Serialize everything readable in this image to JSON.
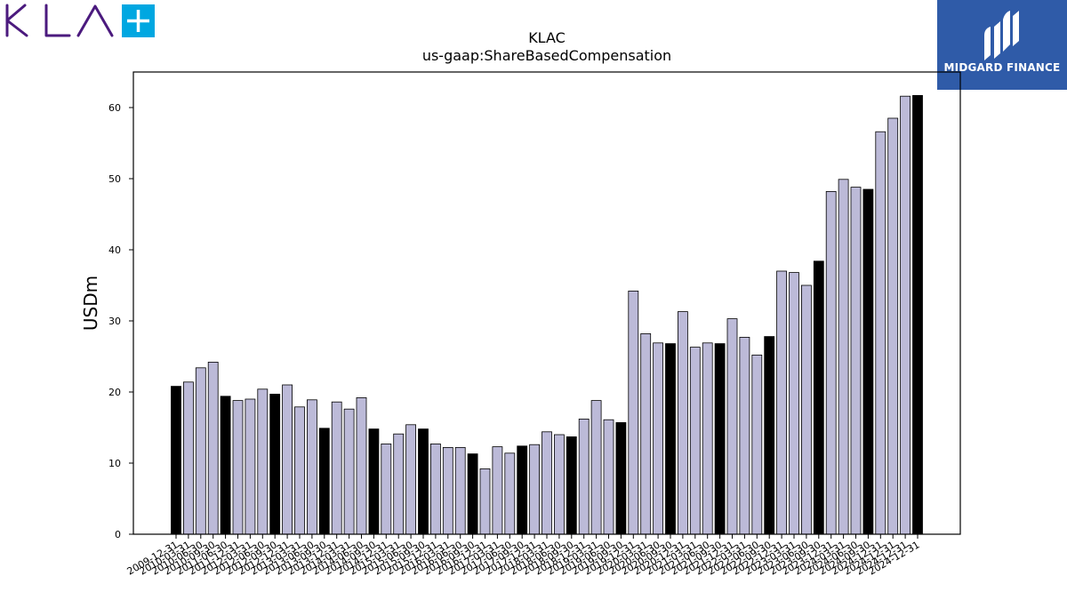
{
  "brand": {
    "left_logo_text": "KLA",
    "right_logo_text": "MIDGARD FINANCE",
    "left_logo_color": "#4b1a7e",
    "plus_box_color": "#00a7e1",
    "right_box_color": "#2f5ba8"
  },
  "chart_data": {
    "type": "bar",
    "title": "KLAC",
    "subtitle": "us-gaap:ShareBasedCompensation",
    "xlabel": "",
    "ylabel": "USDm",
    "ylim": [
      0,
      65
    ],
    "yticks": [
      0,
      10,
      20,
      30,
      40,
      50,
      60
    ],
    "grid": false,
    "bar_colors": {
      "fiscal_year_end": "#000000",
      "quarter": "#bcbad8"
    },
    "categories": [
      "2009-12-31",
      "2010-03-31",
      "2010-06-30",
      "2010-09-30",
      "2011-06-30",
      "2011-12-31",
      "2012-03-31",
      "2012-06-30",
      "2012-09-30",
      "2012-12-31",
      "2013-03-31",
      "2013-06-30",
      "2013-09-30",
      "2013-12-31",
      "2014-03-31",
      "2014-06-30",
      "2014-09-30",
      "2014-12-31",
      "2015-03-31",
      "2015-06-30",
      "2015-09-30",
      "2015-12-31",
      "2016-03-31",
      "2016-06-30",
      "2016-09-30",
      "2016-12-31",
      "2017-03-31",
      "2017-06-30",
      "2017-09-30",
      "2017-12-31",
      "2018-03-31",
      "2018-06-30",
      "2018-09-30",
      "2018-12-31",
      "2019-03-31",
      "2019-06-30",
      "2019-09-30",
      "2019-12-31",
      "2020-03-31",
      "2020-06-30",
      "2020-09-30",
      "2020-12-31",
      "2021-03-31",
      "2021-06-30",
      "2021-09-30",
      "2021-12-31",
      "2022-03-31",
      "2022-06-30",
      "2022-09-30",
      "2022-12-31",
      "2023-03-31",
      "2023-06-30",
      "2023-09-30",
      "2023-12-31",
      "2024-03-31",
      "2024-06-30",
      "2024-09-30",
      "2024-12-31",
      "2024-12-31",
      "2024-12-31",
      "2024-12-31"
    ],
    "xtick_labels": [
      "2009-12-31",
      "2010-03-31",
      "2010-06-30",
      "2010-09-30",
      "2011-06-30",
      "2011-12-31",
      "2012-03-31",
      "2012-06-30",
      "2012-09-30",
      "2012-12-31",
      "2013-03-31",
      "2013-06-30",
      "2013-09-30",
      "2013-12-31",
      "2014-03-31",
      "2014-06-30",
      "2014-09-30",
      "2014-12-31",
      "2015-03-31",
      "2015-06-30",
      "2015-09-30",
      "2015-12-31",
      "2016-03-31",
      "2016-06-30",
      "2016-09-30",
      "2016-12-31",
      "2017-03-31",
      "2017-06-30",
      "2017-09-30",
      "2017-12-31",
      "2018-03-31",
      "2018-06-30",
      "2018-09-30",
      "2018-12-31",
      "2019-03-31",
      "2019-06-30",
      "2019-09-30",
      "2019-12-31",
      "2020-03-31",
      "2020-06-30",
      "2020-09-30",
      "2020-12-31",
      "2021-03-31",
      "2021-06-30",
      "2021-09-30",
      "2021-12-31",
      "2022-03-31",
      "2022-06-30",
      "2022-09-30",
      "2022-12-31",
      "2023-03-31",
      "2023-06-30",
      "2023-09-30",
      "2023-12-31",
      "2024-03-31",
      "2024-06-30",
      "2024-09-30",
      "2024-12-31",
      "2024-12-31",
      "2024-12-31",
      "2024-12-31"
    ],
    "values": [
      20.8,
      21.4,
      23.4,
      24.2,
      19.4,
      18.8,
      19.0,
      20.4,
      19.7,
      21.0,
      17.9,
      18.9,
      14.9,
      18.6,
      17.6,
      19.2,
      14.8,
      12.7,
      14.1,
      15.4,
      14.8,
      12.7,
      12.2,
      12.2,
      11.3,
      9.2,
      12.3,
      11.4,
      12.4,
      12.6,
      14.4,
      14.0,
      13.7,
      16.2,
      18.8,
      16.1,
      15.7,
      34.2,
      28.2,
      26.9,
      26.8,
      31.3,
      26.3,
      26.9,
      26.8,
      30.3,
      27.7,
      25.2,
      27.8,
      37.0,
      36.8,
      35.0,
      38.4,
      48.2,
      49.9,
      48.8,
      48.5,
      56.6,
      58.5,
      61.6,
      61.7
    ],
    "fiscal_year_end": [
      true,
      false,
      false,
      false,
      true,
      false,
      false,
      false,
      true,
      false,
      false,
      false,
      true,
      false,
      false,
      false,
      true,
      false,
      false,
      false,
      true,
      false,
      false,
      false,
      true,
      false,
      false,
      false,
      true,
      false,
      false,
      false,
      true,
      false,
      false,
      false,
      true,
      false,
      false,
      false,
      true,
      false,
      false,
      false,
      true,
      false,
      false,
      false,
      true,
      false,
      false,
      false,
      true,
      false,
      false,
      false,
      true,
      false,
      false,
      false,
      true
    ]
  }
}
